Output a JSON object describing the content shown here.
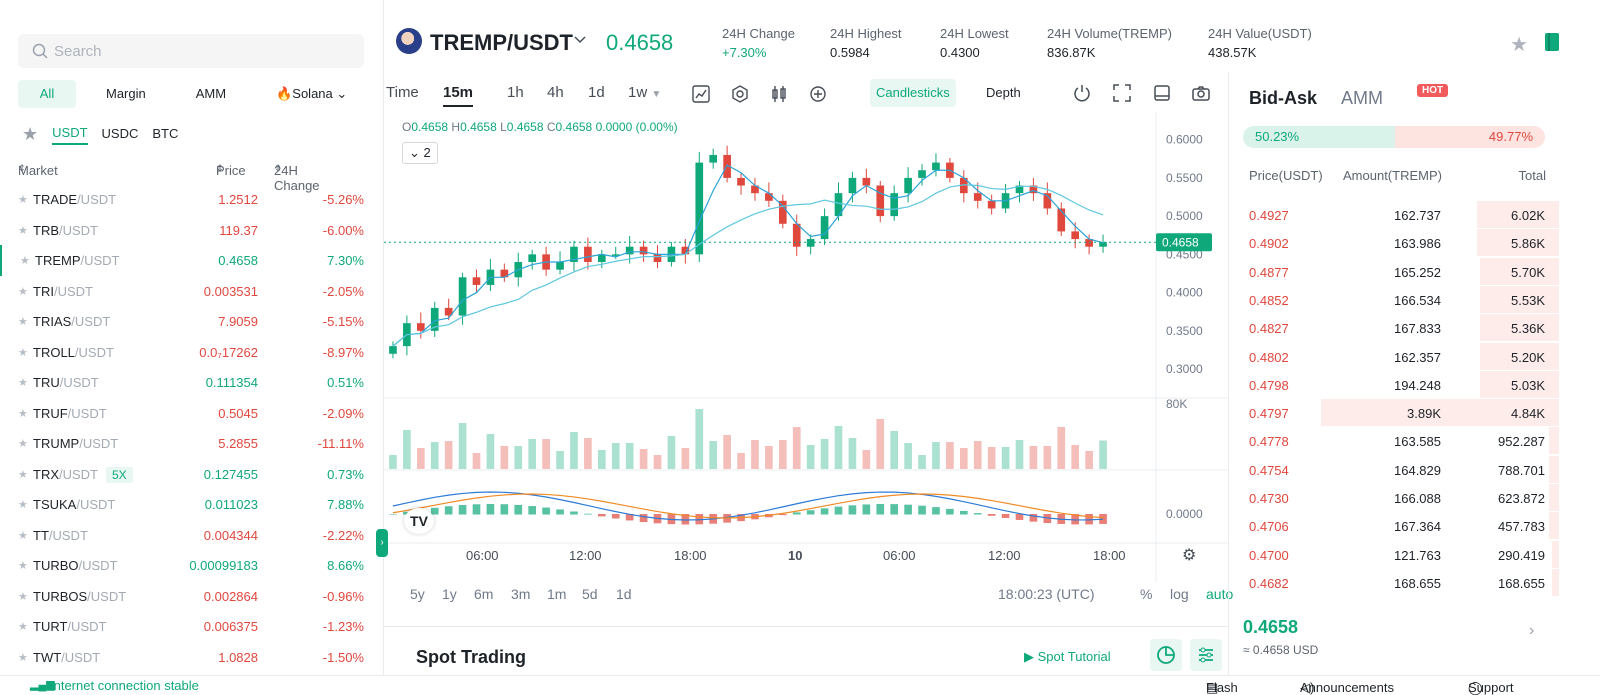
{
  "search": {
    "placeholder": "Search"
  },
  "market_tabs": [
    "All",
    "Margin",
    "AMM",
    "🔥Solana"
  ],
  "quote_tabs": [
    "USDT",
    "USDC",
    "BTC"
  ],
  "market_headers": {
    "market": "Market",
    "price": "Price",
    "change": "24H Change"
  },
  "markets": [
    {
      "base": "TRADE",
      "quote": "/USDT",
      "price": "1.2512",
      "change": "-5.26%",
      "dir": "down"
    },
    {
      "base": "TRB",
      "quote": "/USDT",
      "price": "119.37",
      "change": "-6.00%",
      "dir": "down"
    },
    {
      "base": "TREMP",
      "quote": "/USDT",
      "price": "0.4658",
      "change": "7.30%",
      "dir": "up"
    },
    {
      "base": "TRI",
      "quote": "/USDT",
      "price": "0.003531",
      "change": "-2.05%",
      "dir": "down"
    },
    {
      "base": "TRIAS",
      "quote": "/USDT",
      "price": "7.9059",
      "change": "-5.15%",
      "dir": "down"
    },
    {
      "base": "TROLL",
      "quote": "/USDT",
      "price": "0.0₇17262",
      "change": "-8.97%",
      "dir": "down"
    },
    {
      "base": "TRU",
      "quote": "/USDT",
      "price": "0.111354",
      "change": "0.51%",
      "dir": "up"
    },
    {
      "base": "TRUF",
      "quote": "/USDT",
      "price": "0.5045",
      "change": "-2.09%",
      "dir": "down"
    },
    {
      "base": "TRUMP",
      "quote": "/USDT",
      "price": "5.2855",
      "change": "-11.11%",
      "dir": "down"
    },
    {
      "base": "TRX",
      "quote": "/USDT",
      "price": "0.127455",
      "change": "0.73%",
      "dir": "up",
      "badge": "5X"
    },
    {
      "base": "TSUKA",
      "quote": "/USDT",
      "price": "0.011023",
      "change": "7.88%",
      "dir": "up"
    },
    {
      "base": "TT",
      "quote": "/USDT",
      "price": "0.004344",
      "change": "-2.22%",
      "dir": "down"
    },
    {
      "base": "TURBO",
      "quote": "/USDT",
      "price": "0.00099183",
      "change": "8.66%",
      "dir": "up"
    },
    {
      "base": "TURBOS",
      "quote": "/USDT",
      "price": "0.002864",
      "change": "-0.96%",
      "dir": "down"
    },
    {
      "base": "TURT",
      "quote": "/USDT",
      "price": "0.006375",
      "change": "-1.23%",
      "dir": "down"
    },
    {
      "base": "TWT",
      "quote": "/USDT",
      "price": "1.0828",
      "change": "-1.50%",
      "dir": "down"
    }
  ],
  "header": {
    "pair": "TREMP/USDT",
    "last_price": "0.4658",
    "stats": [
      {
        "label": "24H Change",
        "value": "+7.30%"
      },
      {
        "label": "24H Highest",
        "value": "0.5984"
      },
      {
        "label": "24H Lowest",
        "value": "0.4300"
      },
      {
        "label": "24H Volume(TREMP)",
        "value": "836.87K"
      },
      {
        "label": "24H Value(USDT)",
        "value": "438.57K"
      }
    ]
  },
  "toolbar": {
    "timeframes": [
      "Time",
      "15m",
      "1h",
      "4h",
      "1d",
      "1w"
    ],
    "active_timeframe": "15m",
    "views": [
      "Candlesticks",
      "Depth"
    ]
  },
  "chart_info": {
    "ohlc": {
      "O": "0.4658",
      "H": "0.4658",
      "L": "0.4658",
      "C": "0.4658",
      "change": "0.0000 (0.00%)"
    },
    "indicator_count": "2",
    "current_price_label": "0.4658",
    "volume_axis_label": "80K",
    "macd_axis_label": "0.0000"
  },
  "chart_data": {
    "type": "line",
    "title": "",
    "xlabel": "",
    "ylabel": "",
    "x_ticks": [
      "06:00",
      "12:00",
      "18:00",
      "10",
      "06:00",
      "12:00",
      "18:00"
    ],
    "y_ticks": [
      "0.6000",
      "0.5500",
      "0.5000",
      "0.4500",
      "0.4000",
      "0.3500",
      "0.3000"
    ],
    "ylim": [
      0.27,
      0.61
    ],
    "series": [
      {
        "values": [
          0.33,
          0.36,
          0.35,
          0.38,
          0.37,
          0.42,
          0.41,
          0.43,
          0.42,
          0.44,
          0.45,
          0.43,
          0.44,
          0.46,
          0.44,
          0.45,
          0.45,
          0.46,
          0.45,
          0.44,
          0.46,
          0.45,
          0.57,
          0.58,
          0.55,
          0.54,
          0.53,
          0.52,
          0.49,
          0.46,
          0.47,
          0.5,
          0.53,
          0.55,
          0.54,
          0.5,
          0.53,
          0.55,
          0.56,
          0.57,
          0.55,
          0.53,
          0.52,
          0.51,
          0.53,
          0.54,
          0.53,
          0.51,
          0.48,
          0.47,
          0.46,
          0.4658
        ]
      }
    ]
  },
  "range_bar": {
    "ranges": [
      "5y",
      "1y",
      "6m",
      "3m",
      "1m",
      "5d",
      "1d"
    ],
    "clock": "18:00:23 (UTC)",
    "opts": [
      "%",
      "log",
      "auto"
    ]
  },
  "spot": {
    "title": "Spot Trading",
    "tutorial": "Spot Tutorial"
  },
  "orderbook": {
    "tabs": [
      "Bid-Ask",
      "AMM"
    ],
    "hot": "HOT",
    "buy_ratio": "50.23%",
    "sell_ratio": "49.77%",
    "buy_ratio_value": 0.5023,
    "headers": [
      "Price(USDT)",
      "Amount(TREMP)",
      "Total"
    ],
    "asks": [
      {
        "price": "0.4927",
        "amount": "162.737",
        "total": "6.02K",
        "depth": 0.25
      },
      {
        "price": "0.4902",
        "amount": "163.986",
        "total": "5.86K",
        "depth": 0.25
      },
      {
        "price": "0.4877",
        "amount": "165.252",
        "total": "5.70K",
        "depth": 0.24
      },
      {
        "price": "0.4852",
        "amount": "166.534",
        "total": "5.53K",
        "depth": 0.24
      },
      {
        "price": "0.4827",
        "amount": "167.833",
        "total": "5.36K",
        "depth": 0.24
      },
      {
        "price": "0.4802",
        "amount": "162.357",
        "total": "5.20K",
        "depth": 0.24
      },
      {
        "price": "0.4798",
        "amount": "194.248",
        "total": "5.03K",
        "depth": 0.24
      },
      {
        "price": "0.4797",
        "amount": "3.89K",
        "total": "4.84K",
        "depth": 0.72
      },
      {
        "price": "0.4778",
        "amount": "163.585",
        "total": "952.287",
        "depth": 0.03
      },
      {
        "price": "0.4754",
        "amount": "164.829",
        "total": "788.701",
        "depth": 0.03
      },
      {
        "price": "0.4730",
        "amount": "166.088",
        "total": "623.872",
        "depth": 0.03
      },
      {
        "price": "0.4706",
        "amount": "167.364",
        "total": "457.783",
        "depth": 0.03
      },
      {
        "price": "0.4700",
        "amount": "121.763",
        "total": "290.419",
        "depth": 0.02
      },
      {
        "price": "0.4682",
        "amount": "168.655",
        "total": "168.655",
        "depth": 0.02
      }
    ],
    "last_price": "0.4658",
    "usd_value": "≈ 0.4658 USD"
  },
  "status_bar": {
    "connection": "Internet connection stable",
    "flash": "Flash",
    "announcements": "Announcements",
    "support": "Support"
  },
  "colors": {
    "up": "#0fa87b",
    "down": "#e0473d",
    "ma1": "#2aa3d6",
    "ma2": "#5ec7e0",
    "macd": "#2e7bd6",
    "signal": "#f08a24"
  }
}
